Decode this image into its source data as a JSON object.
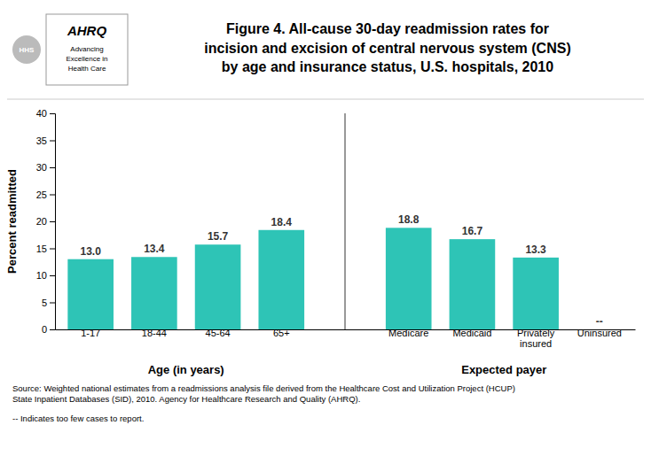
{
  "chart_data": {
    "type": "bar",
    "title": "Figure 4. All-cause 30-day readmission rates for\nincision and excision of central nervous system (CNS)\nby age and insurance status, U.S. hospitals, 2010",
    "categories": [
      "1-17",
      "18-44",
      "45-64",
      "65+",
      "Medicare",
      "Medicaid",
      "Privately\ninsured",
      "Uninsured"
    ],
    "values": [
      13.0,
      13.4,
      15.7,
      18.4,
      18.8,
      16.7,
      13.3,
      null
    ],
    "value_labels": [
      "13.0",
      "13.4",
      "15.7",
      "18.4",
      "18.8",
      "16.7",
      "13.3",
      "--"
    ],
    "color": "#2EC4B6",
    "groups": [
      {
        "name": "Age (in years)",
        "count": 4
      },
      {
        "name": "Expected payer",
        "count": 4
      }
    ],
    "ylabel": "Percent readmitted",
    "ylim": [
      0,
      40
    ],
    "yticks": [
      0,
      5,
      10,
      15,
      20,
      25,
      30,
      35,
      40
    ],
    "grid": false,
    "data_labels": true,
    "annotations": [
      "Source: Weighted national estimates from a readmissions analysis file derived from the Healthcare Cost and Utilization Project (HCUP)\nState Inpatient Databases (SID), 2010. Agency for Healthcare Research and Quality (AHRQ).",
      "-- Indicates too few cases to report."
    ],
    "logo": {
      "name": "AHRQ",
      "tagline": [
        "Advancing",
        "Excellence in",
        "Health Care"
      ],
      "seal": "HHS"
    }
  }
}
